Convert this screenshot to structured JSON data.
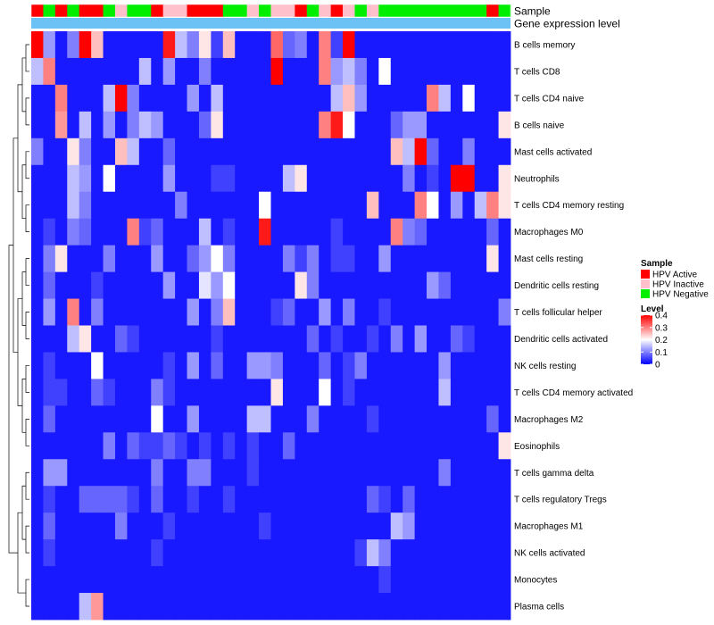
{
  "chart_data": {
    "type": "heatmap",
    "title": "",
    "annotation_tracks": [
      "Sample",
      "Gene expression level"
    ],
    "sample_groups": [
      "HPV Active",
      "HPV Negative",
      "HPV Active",
      "HPV Negative",
      "HPV Active",
      "HPV Active",
      "HPV Negative",
      "HPV Inactive",
      "HPV Negative",
      "HPV Negative",
      "HPV Active",
      "HPV Inactive",
      "HPV Inactive",
      "HPV Active",
      "HPV Active",
      "HPV Active",
      "HPV Negative",
      "HPV Negative",
      "HPV Inactive",
      "HPV Negative",
      "HPV Inactive",
      "HPV Inactive",
      "HPV Active",
      "HPV Negative",
      "HPV Inactive",
      "HPV Active",
      "HPV Inactive",
      "HPV Negative",
      "HPV Inactive",
      "HPV Negative",
      "HPV Negative",
      "HPV Negative",
      "HPV Negative",
      "HPV Negative",
      "HPV Negative",
      "HPV Negative",
      "HPV Negative",
      "HPV Negative",
      "HPV Active",
      "HPV Negative"
    ],
    "rows": [
      "B cells memory",
      "T cells CD8",
      "T cells CD4 naive",
      "B cells naive",
      "Mast cells activated",
      "Neutrophils",
      "T cells CD4 memory resting",
      "Macrophages M0",
      "Mast cells resting",
      "Dendritic cells resting",
      "T cells follicular helper",
      "Dendritic cells activated",
      "NK cells resting",
      "T cells CD4 memory activated",
      "Macrophages M2",
      "Eosinophils",
      "T cells gamma delta",
      "T cells regulatory  Tregs",
      "Macrophages M1",
      "NK cells activated",
      "Monocytes",
      "Plasma cells"
    ],
    "values": [
      [
        0.4,
        0.12,
        0.02,
        0.1,
        0.4,
        0.25,
        0.02,
        0.02,
        0.02,
        0.02,
        0.02,
        0.38,
        0.15,
        0.1,
        0.22,
        0.05,
        0.25,
        0.02,
        0.02,
        0.02,
        0.32,
        0.08,
        0.1,
        0.02,
        0.3,
        0.05,
        0.4,
        0.02,
        0.02,
        0.02,
        0.02,
        0.02,
        0.02,
        0.02,
        0.02,
        0.02,
        0.02,
        0.02,
        0.02,
        0.02
      ],
      [
        0.15,
        0.3,
        0.02,
        0.02,
        0.02,
        0.02,
        0.02,
        0.02,
        0.02,
        0.15,
        0.02,
        0.12,
        0.02,
        0.02,
        0.1,
        0.02,
        0.02,
        0.02,
        0.02,
        0.02,
        0.4,
        0.02,
        0.02,
        0.02,
        0.3,
        0.12,
        0.15,
        0.1,
        0.02,
        0.2,
        0.02,
        0.02,
        0.02,
        0.02,
        0.02,
        0.02,
        0.02,
        0.02,
        0.02,
        0.02
      ],
      [
        0.02,
        0.02,
        0.3,
        0.02,
        0.02,
        0.02,
        0.15,
        0.4,
        0.1,
        0.02,
        0.02,
        0.02,
        0.02,
        0.12,
        0.02,
        0.15,
        0.02,
        0.02,
        0.02,
        0.02,
        0.02,
        0.02,
        0.02,
        0.02,
        0.02,
        0.15,
        0.25,
        0.12,
        0.02,
        0.02,
        0.02,
        0.02,
        0.02,
        0.3,
        0.15,
        0.02,
        0.2,
        0.02,
        0.02,
        0.02
      ],
      [
        0.02,
        0.02,
        0.28,
        0.02,
        0.15,
        0.02,
        0.12,
        0.02,
        0.1,
        0.15,
        0.12,
        0.02,
        0.02,
        0.02,
        0.08,
        0.22,
        0.02,
        0.02,
        0.02,
        0.02,
        0.02,
        0.02,
        0.02,
        0.02,
        0.3,
        0.38,
        0.2,
        0.02,
        0.02,
        0.02,
        0.08,
        0.12,
        0.12,
        0.02,
        0.02,
        0.02,
        0.02,
        0.02,
        0.02,
        0.22
      ],
      [
        0.1,
        0.02,
        0.02,
        0.22,
        0.1,
        0.02,
        0.02,
        0.25,
        0.15,
        0.02,
        0.02,
        0.08,
        0.02,
        0.02,
        0.02,
        0.02,
        0.02,
        0.02,
        0.02,
        0.02,
        0.02,
        0.02,
        0.02,
        0.02,
        0.02,
        0.02,
        0.02,
        0.02,
        0.02,
        0.02,
        0.25,
        0.15,
        0.4,
        0.08,
        0.02,
        0.02,
        0.1,
        0.02,
        0.02,
        0.02
      ],
      [
        0.02,
        0.02,
        0.02,
        0.15,
        0.12,
        0.02,
        0.2,
        0.02,
        0.02,
        0.02,
        0.02,
        0.12,
        0.02,
        0.02,
        0.02,
        0.05,
        0.05,
        0.02,
        0.02,
        0.02,
        0.02,
        0.15,
        0.22,
        0.02,
        0.02,
        0.02,
        0.02,
        0.02,
        0.02,
        0.02,
        0.02,
        0.1,
        0.02,
        0.05,
        0.02,
        0.4,
        0.4,
        0.02,
        0.02,
        0.22
      ],
      [
        0.02,
        0.02,
        0.02,
        0.15,
        0.1,
        0.02,
        0.02,
        0.02,
        0.02,
        0.02,
        0.02,
        0.02,
        0.1,
        0.02,
        0.02,
        0.02,
        0.02,
        0.02,
        0.02,
        0.2,
        0.02,
        0.02,
        0.02,
        0.02,
        0.02,
        0.02,
        0.02,
        0.02,
        0.25,
        0.02,
        0.02,
        0.02,
        0.3,
        0.2,
        0.02,
        0.12,
        0.02,
        0.15,
        0.3,
        0.22
      ],
      [
        0.02,
        0.05,
        0.02,
        0.1,
        0.08,
        0.02,
        0.02,
        0.02,
        0.3,
        0.05,
        0.08,
        0.02,
        0.02,
        0.02,
        0.15,
        0.02,
        0.05,
        0.02,
        0.02,
        0.38,
        0.02,
        0.02,
        0.02,
        0.02,
        0.02,
        0.05,
        0.02,
        0.02,
        0.02,
        0.02,
        0.3,
        0.1,
        0.08,
        0.02,
        0.02,
        0.02,
        0.02,
        0.02,
        0.08,
        0.02
      ],
      [
        0.02,
        0.1,
        0.22,
        0.02,
        0.02,
        0.02,
        0.1,
        0.02,
        0.02,
        0.02,
        0.12,
        0.02,
        0.02,
        0.08,
        0.12,
        0.2,
        0.1,
        0.02,
        0.02,
        0.02,
        0.02,
        0.1,
        0.05,
        0.1,
        0.02,
        0.05,
        0.05,
        0.02,
        0.02,
        0.12,
        0.02,
        0.02,
        0.02,
        0.02,
        0.02,
        0.02,
        0.02,
        0.02,
        0.22,
        0.02
      ],
      [
        0.02,
        0.08,
        0.02,
        0.02,
        0.02,
        0.05,
        0.02,
        0.02,
        0.02,
        0.02,
        0.02,
        0.12,
        0.02,
        0.02,
        0.18,
        0.12,
        0.2,
        0.02,
        0.02,
        0.02,
        0.02,
        0.02,
        0.22,
        0.1,
        0.02,
        0.02,
        0.02,
        0.02,
        0.02,
        0.02,
        0.02,
        0.02,
        0.02,
        0.12,
        0.08,
        0.02,
        0.02,
        0.02,
        0.02,
        0.02
      ],
      [
        0.02,
        0.12,
        0.02,
        0.3,
        0.02,
        0.1,
        0.02,
        0.02,
        0.02,
        0.02,
        0.02,
        0.02,
        0.02,
        0.12,
        0.02,
        0.1,
        0.25,
        0.02,
        0.02,
        0.02,
        0.05,
        0.08,
        0.02,
        0.02,
        0.12,
        0.02,
        0.1,
        0.02,
        0.02,
        0.05,
        0.02,
        0.02,
        0.02,
        0.02,
        0.02,
        0.02,
        0.02,
        0.02,
        0.02,
        0.1
      ],
      [
        0.02,
        0.02,
        0.02,
        0.15,
        0.22,
        0.02,
        0.02,
        0.08,
        0.05,
        0.02,
        0.02,
        0.02,
        0.02,
        0.02,
        0.02,
        0.05,
        0.02,
        0.02,
        0.02,
        0.02,
        0.02,
        0.02,
        0.02,
        0.08,
        0.02,
        0.05,
        0.02,
        0.02,
        0.05,
        0.02,
        0.1,
        0.02,
        0.12,
        0.02,
        0.02,
        0.08,
        0.05,
        0.02,
        0.02,
        0.02
      ],
      [
        0.02,
        0.05,
        0.02,
        0.02,
        0.02,
        0.2,
        0.02,
        0.02,
        0.02,
        0.02,
        0.02,
        0.05,
        0.02,
        0.12,
        0.02,
        0.08,
        0.02,
        0.02,
        0.12,
        0.12,
        0.1,
        0.02,
        0.02,
        0.02,
        0.08,
        0.02,
        0.05,
        0.1,
        0.02,
        0.02,
        0.02,
        0.02,
        0.02,
        0.02,
        0.12,
        0.02,
        0.02,
        0.02,
        0.02,
        0.02
      ],
      [
        0.02,
        0.05,
        0.05,
        0.02,
        0.02,
        0.08,
        0.05,
        0.02,
        0.02,
        0.02,
        0.1,
        0.05,
        0.02,
        0.02,
        0.02,
        0.02,
        0.02,
        0.02,
        0.02,
        0.02,
        0.22,
        0.02,
        0.02,
        0.02,
        0.2,
        0.02,
        0.05,
        0.02,
        0.02,
        0.02,
        0.02,
        0.02,
        0.02,
        0.02,
        0.15,
        0.02,
        0.02,
        0.02,
        0.02,
        0.02
      ],
      [
        0.02,
        0.08,
        0.02,
        0.02,
        0.02,
        0.02,
        0.02,
        0.02,
        0.02,
        0.02,
        0.2,
        0.02,
        0.02,
        0.12,
        0.02,
        0.02,
        0.02,
        0.02,
        0.15,
        0.15,
        0.02,
        0.02,
        0.02,
        0.1,
        0.02,
        0.02,
        0.02,
        0.02,
        0.05,
        0.02,
        0.02,
        0.02,
        0.02,
        0.02,
        0.02,
        0.02,
        0.02,
        0.02,
        0.08,
        0.02
      ],
      [
        0.02,
        0.02,
        0.02,
        0.02,
        0.02,
        0.02,
        0.1,
        0.02,
        0.08,
        0.05,
        0.05,
        0.08,
        0.05,
        0.02,
        0.05,
        0.02,
        0.05,
        0.02,
        0.05,
        0.02,
        0.02,
        0.08,
        0.02,
        0.02,
        0.02,
        0.02,
        0.02,
        0.02,
        0.02,
        0.02,
        0.02,
        0.02,
        0.02,
        0.02,
        0.02,
        0.02,
        0.02,
        0.02,
        0.02,
        0.22
      ],
      [
        0.02,
        0.12,
        0.12,
        0.02,
        0.02,
        0.02,
        0.02,
        0.02,
        0.02,
        0.02,
        0.1,
        0.02,
        0.02,
        0.1,
        0.1,
        0.02,
        0.02,
        0.02,
        0.05,
        0.02,
        0.02,
        0.02,
        0.02,
        0.02,
        0.02,
        0.02,
        0.02,
        0.02,
        0.02,
        0.02,
        0.02,
        0.02,
        0.02,
        0.02,
        0.1,
        0.02,
        0.02,
        0.02,
        0.02,
        0.02
      ],
      [
        0.02,
        0.05,
        0.02,
        0.02,
        0.08,
        0.08,
        0.08,
        0.08,
        0.05,
        0.02,
        0.08,
        0.02,
        0.02,
        0.05,
        0.02,
        0.02,
        0.05,
        0.02,
        0.02,
        0.02,
        0.02,
        0.02,
        0.02,
        0.02,
        0.02,
        0.02,
        0.02,
        0.02,
        0.08,
        0.05,
        0.02,
        0.08,
        0.02,
        0.02,
        0.02,
        0.02,
        0.02,
        0.02,
        0.02,
        0.02
      ],
      [
        0.02,
        0.08,
        0.02,
        0.02,
        0.02,
        0.02,
        0.02,
        0.1,
        0.02,
        0.02,
        0.02,
        0.05,
        0.02,
        0.02,
        0.02,
        0.02,
        0.02,
        0.02,
        0.02,
        0.05,
        0.02,
        0.02,
        0.02,
        0.02,
        0.02,
        0.02,
        0.02,
        0.02,
        0.02,
        0.02,
        0.15,
        0.12,
        0.02,
        0.02,
        0.02,
        0.02,
        0.02,
        0.02,
        0.02,
        0.02
      ],
      [
        0.02,
        0.05,
        0.02,
        0.02,
        0.02,
        0.02,
        0.02,
        0.02,
        0.02,
        0.02,
        0.05,
        0.02,
        0.02,
        0.02,
        0.02,
        0.02,
        0.02,
        0.02,
        0.02,
        0.02,
        0.02,
        0.02,
        0.02,
        0.02,
        0.02,
        0.02,
        0.02,
        0.05,
        0.15,
        0.1,
        0.02,
        0.02,
        0.02,
        0.02,
        0.02,
        0.02,
        0.02,
        0.02,
        0.02,
        0.02
      ],
      [
        0.02,
        0.02,
        0.02,
        0.02,
        0.02,
        0.02,
        0.02,
        0.02,
        0.02,
        0.02,
        0.02,
        0.02,
        0.02,
        0.02,
        0.02,
        0.02,
        0.02,
        0.02,
        0.02,
        0.02,
        0.02,
        0.02,
        0.02,
        0.02,
        0.02,
        0.02,
        0.02,
        0.02,
        0.02,
        0.05,
        0.02,
        0.02,
        0.02,
        0.02,
        0.02,
        0.02,
        0.02,
        0.02,
        0.02,
        0.02
      ],
      [
        0.02,
        0.02,
        0.02,
        0.02,
        0.15,
        0.28,
        0.02,
        0.02,
        0.02,
        0.02,
        0.02,
        0.02,
        0.02,
        0.02,
        0.02,
        0.02,
        0.02,
        0.02,
        0.02,
        0.02,
        0.02,
        0.02,
        0.02,
        0.02,
        0.02,
        0.02,
        0.02,
        0.02,
        0.02,
        0.02,
        0.02,
        0.02,
        0.02,
        0.02,
        0.02,
        0.02,
        0.02,
        0.02,
        0.02,
        0.02
      ]
    ],
    "color_scale": {
      "min": 0,
      "max": 0.4,
      "stops": [
        {
          "value": 0,
          "color": "#0000ff"
        },
        {
          "value": 0.2,
          "color": "#ffffff"
        },
        {
          "value": 0.4,
          "color": "#ff0000"
        }
      ]
    },
    "group_colors": {
      "HPV Active": "#ff0000",
      "HPV Inactive": "#ffc0cb",
      "HPV Negative": "#00ee00"
    },
    "expression_track_color": "#6cc1f5",
    "legends": {
      "sample": {
        "title": "Sample",
        "entries": [
          "HPV Active",
          "HPV Inactive",
          "HPV Negative"
        ]
      },
      "level": {
        "title": "Level",
        "ticks": [
          "0.4",
          "0.3",
          "0.2",
          "0.1",
          "0"
        ],
        "tick_values": [
          0.4,
          0.3,
          0.2,
          0.1,
          0
        ]
      }
    }
  }
}
